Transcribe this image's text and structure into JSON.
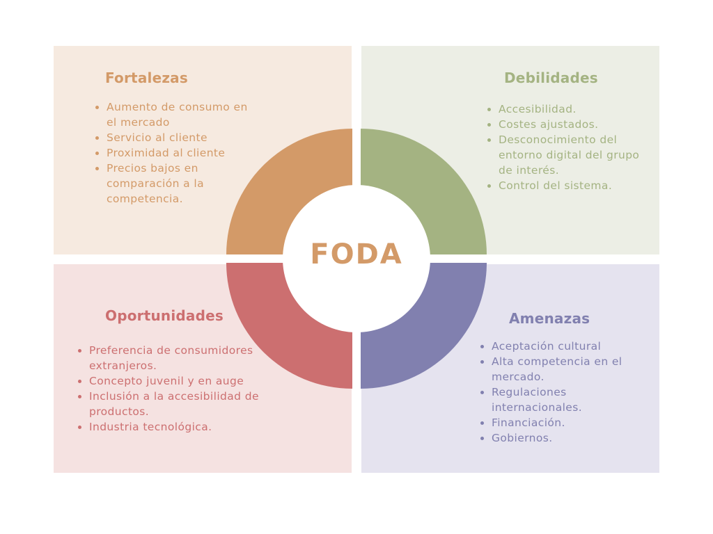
{
  "center": {
    "label": "FODA"
  },
  "colors": {
    "fortalezas_text": "#D39A68",
    "fortalezas_bg": "#F6EAE0",
    "debilidades_text": "#A4B382",
    "debilidades_bg": "#ECEEE5",
    "oportunidades_text": "#CC6F70",
    "oportunidades_bg": "#F5E2E1",
    "amenazas_text": "#8180AF",
    "amenazas_bg": "#E5E3EF",
    "center_text": "#D39A68"
  },
  "fortalezas": {
    "title": "Fortalezas",
    "items": [
      " Aumento de consumo en el mercado",
      "Servicio al cliente",
      "Proximidad al cliente",
      "Precios bajos en comparación a la competencia."
    ]
  },
  "debilidades": {
    "title": "Debilidades",
    "items": [
      "Accesibilidad.",
      " Costes ajustados.",
      " Desconocimiento del entorno digital del grupo de interés.",
      "Control del sistema."
    ]
  },
  "oportunidades": {
    "title": "Oportunidades",
    "items": [
      "Preferencia de consumidores extranjeros.",
      "Concepto juvenil y en auge",
      "Inclusión a la accesibilidad de productos.",
      "Industria tecnológica."
    ]
  },
  "amenazas": {
    "title": "Amenazas",
    "items": [
      "Aceptación cultural",
      "Alta competencia en el mercado.",
      "Regulaciones internacionales.",
      "Financiación.",
      "Gobiernos."
    ]
  }
}
